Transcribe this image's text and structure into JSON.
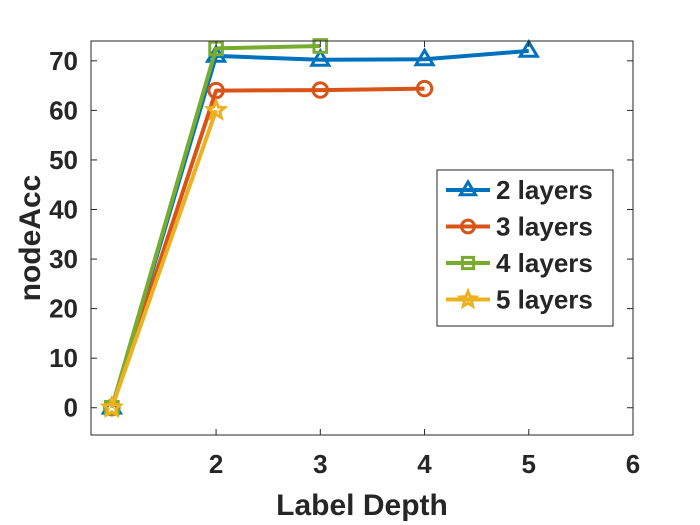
{
  "chart_data": {
    "type": "line",
    "title": "",
    "xlabel": "Label Depth",
    "ylabel": "nodeAcc",
    "xlim": [
      0.8,
      6
    ],
    "ylim": [
      -5.5,
      74
    ],
    "xticks": [
      2,
      3,
      4,
      5,
      6
    ],
    "yticks": [
      0,
      10,
      20,
      30,
      40,
      50,
      60,
      70
    ],
    "grid": false,
    "legend_position": "center-right",
    "series": [
      {
        "name": "2 layers",
        "color": "#0072BD",
        "marker": "triangle",
        "x": [
          1,
          2,
          3,
          4,
          5
        ],
        "y": [
          0,
          71,
          70.2,
          70.3,
          72
        ]
      },
      {
        "name": "3 layers",
        "color": "#D95319",
        "marker": "circle",
        "x": [
          1,
          2,
          3,
          4
        ],
        "y": [
          0,
          64,
          64.1,
          64.4
        ]
      },
      {
        "name": "4 layers",
        "color": "#77AC30",
        "marker": "square",
        "x": [
          1,
          2,
          3
        ],
        "y": [
          0,
          72.5,
          73
        ]
      },
      {
        "name": "5 layers",
        "color": "#EDB120",
        "marker": "star",
        "x": [
          1,
          2
        ],
        "y": [
          0,
          60
        ]
      }
    ]
  }
}
